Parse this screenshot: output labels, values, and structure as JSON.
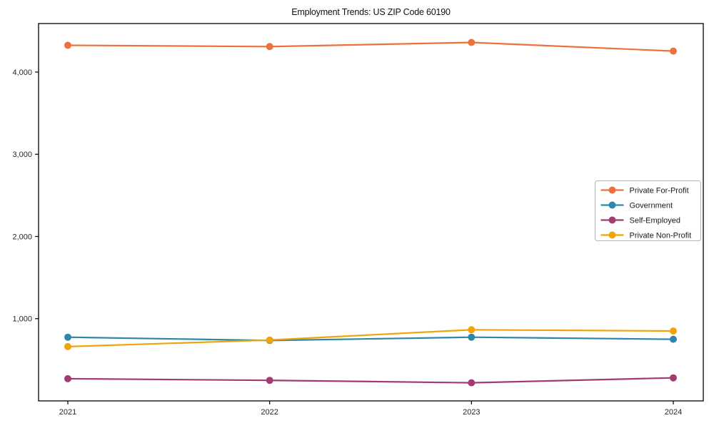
{
  "chart_data": {
    "type": "line",
    "title": "Employment Trends: US ZIP Code 60190",
    "xlabel": "",
    "ylabel": "",
    "categories": [
      "2021",
      "2022",
      "2023",
      "2024"
    ],
    "series": [
      {
        "name": "Private For-Profit",
        "color": "#ED713C",
        "values": [
          4325,
          4310,
          4360,
          4255
        ]
      },
      {
        "name": "Government",
        "color": "#2E86AB",
        "values": [
          775,
          735,
          775,
          750
        ]
      },
      {
        "name": "Self-Employed",
        "color": "#A23B72",
        "values": [
          270,
          250,
          220,
          280
        ]
      },
      {
        "name": "Private Non-Profit",
        "color": "#F0A30A",
        "values": [
          660,
          740,
          865,
          850
        ]
      }
    ],
    "ylim": [
      0,
      4590
    ],
    "yticks": [
      {
        "value": 1000,
        "label": "1,000"
      },
      {
        "value": 2000,
        "label": "2,000"
      },
      {
        "value": 3000,
        "label": "3,000"
      },
      {
        "value": 4000,
        "label": "4,000"
      }
    ],
    "grid": false,
    "legend_position": "center right",
    "axis_color": "#000000",
    "tick_label_color": "#262626",
    "legend_border_color": "#b3b3b3"
  }
}
